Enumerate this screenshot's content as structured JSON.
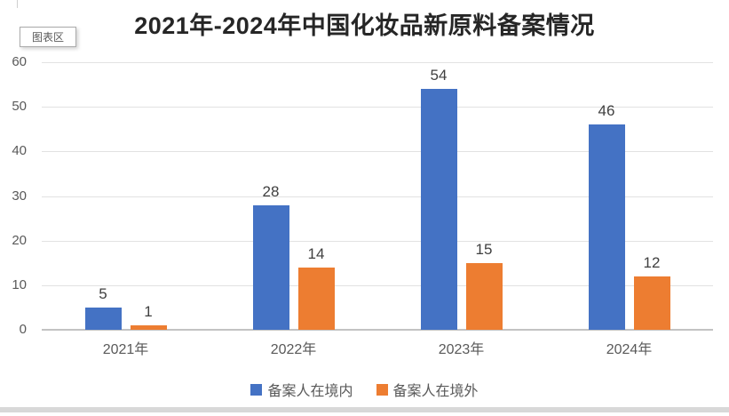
{
  "tooltip": {
    "label": "图表区"
  },
  "chart_data": {
    "type": "bar",
    "title": "2021年-2024年中国化妆品新原料备案情况",
    "categories": [
      "2021年",
      "2022年",
      "2023年",
      "2024年"
    ],
    "series": [
      {
        "name": "备案人在境内",
        "color": "#4472C4",
        "values": [
          5,
          28,
          54,
          46
        ]
      },
      {
        "name": "备案人在境外",
        "color": "#ED7D31",
        "values": [
          1,
          14,
          15,
          12
        ]
      }
    ],
    "ylim": [
      0,
      60
    ],
    "yticks": [
      0,
      10,
      20,
      30,
      40,
      50,
      60
    ],
    "grid": true,
    "legend_position": "bottom",
    "data_labels": true
  },
  "colors": {
    "series_blue": "#4472C4",
    "series_orange": "#ED7D31",
    "gridline": "#E2E2E2",
    "axis_line": "#C3C3C3",
    "tick_text": "#595959",
    "data_label_text": "#404040",
    "title_text": "#262626",
    "bottom_edge": "#D8D8D8"
  }
}
